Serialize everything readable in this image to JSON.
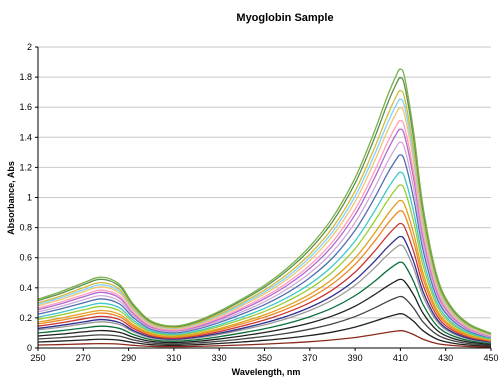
{
  "chart_data": {
    "type": "line",
    "title": "Myoglobin Sample",
    "xlabel": "Wavelength, nm",
    "ylabel": "Absorbance, Abs",
    "xlim": [
      250,
      450
    ],
    "ylim": [
      0,
      2
    ],
    "x_ticks": [
      "250",
      "270",
      "290",
      "310",
      "330",
      "350",
      "370",
      "390",
      "410",
      "430",
      "450"
    ],
    "y_ticks": [
      "0",
      "0.2",
      "0.4",
      "0.6",
      "0.8",
      "1",
      "1.2",
      "1.4",
      "1.6",
      "1.8",
      "2"
    ],
    "grid": true,
    "legend": "none",
    "x": [
      250,
      260,
      270,
      278,
      286,
      292,
      300,
      310,
      320,
      330,
      340,
      350,
      360,
      370,
      380,
      390,
      398,
      404,
      408,
      410,
      412,
      416,
      420,
      426,
      432,
      440,
      450
    ],
    "series": [
      {
        "color": "#8b2a1a",
        "values": [
          0.02,
          0.023,
          0.027,
          0.029,
          0.026,
          0.018,
          0.011,
          0.009,
          0.011,
          0.015,
          0.02,
          0.026,
          0.033,
          0.042,
          0.054,
          0.07,
          0.088,
          0.103,
          0.112,
          0.115,
          0.111,
          0.088,
          0.058,
          0.03,
          0.018,
          0.01,
          0.006
        ]
      },
      {
        "color": "#222222",
        "values": [
          0.04,
          0.046,
          0.053,
          0.058,
          0.052,
          0.036,
          0.022,
          0.018,
          0.022,
          0.03,
          0.04,
          0.051,
          0.065,
          0.083,
          0.106,
          0.139,
          0.175,
          0.205,
          0.222,
          0.228,
          0.22,
          0.175,
          0.115,
          0.06,
          0.035,
          0.02,
          0.012
        ]
      },
      {
        "color": "#444444",
        "values": [
          0.06,
          0.069,
          0.08,
          0.087,
          0.078,
          0.054,
          0.033,
          0.027,
          0.033,
          0.045,
          0.06,
          0.077,
          0.098,
          0.125,
          0.16,
          0.209,
          0.262,
          0.307,
          0.333,
          0.342,
          0.33,
          0.262,
          0.173,
          0.09,
          0.053,
          0.03,
          0.018
        ]
      },
      {
        "color": "#1f1f1f",
        "values": [
          0.08,
          0.092,
          0.107,
          0.116,
          0.104,
          0.072,
          0.044,
          0.036,
          0.044,
          0.06,
          0.08,
          0.103,
          0.131,
          0.166,
          0.213,
          0.278,
          0.349,
          0.409,
          0.445,
          0.456,
          0.44,
          0.349,
          0.231,
          0.12,
          0.07,
          0.04,
          0.024
        ]
      },
      {
        "color": "#0b6e3a",
        "values": [
          0.1,
          0.115,
          0.133,
          0.145,
          0.13,
          0.09,
          0.055,
          0.045,
          0.055,
          0.075,
          0.1,
          0.128,
          0.163,
          0.208,
          0.266,
          0.348,
          0.436,
          0.512,
          0.556,
          0.57,
          0.55,
          0.436,
          0.289,
          0.15,
          0.088,
          0.05,
          0.03
        ]
      },
      {
        "color": "#9a9a9a",
        "values": [
          0.12,
          0.138,
          0.16,
          0.174,
          0.156,
          0.108,
          0.066,
          0.054,
          0.066,
          0.09,
          0.12,
          0.154,
          0.196,
          0.249,
          0.319,
          0.417,
          0.524,
          0.614,
          0.667,
          0.684,
          0.66,
          0.524,
          0.346,
          0.18,
          0.105,
          0.06,
          0.036
        ]
      },
      {
        "color": "#2f2f8f",
        "values": [
          0.13,
          0.15,
          0.173,
          0.189,
          0.169,
          0.117,
          0.072,
          0.059,
          0.072,
          0.098,
          0.13,
          0.167,
          0.212,
          0.27,
          0.346,
          0.452,
          0.567,
          0.665,
          0.722,
          0.741,
          0.715,
          0.567,
          0.375,
          0.195,
          0.114,
          0.065,
          0.039
        ]
      },
      {
        "color": "#cc3333",
        "values": [
          0.145,
          0.167,
          0.193,
          0.21,
          0.189,
          0.131,
          0.08,
          0.065,
          0.08,
          0.109,
          0.145,
          0.186,
          0.237,
          0.301,
          0.386,
          0.504,
          0.633,
          0.742,
          0.806,
          0.827,
          0.798,
          0.633,
          0.419,
          0.218,
          0.127,
          0.073,
          0.044
        ]
      },
      {
        "color": "#ee8822",
        "values": [
          0.16,
          0.184,
          0.213,
          0.232,
          0.208,
          0.144,
          0.088,
          0.072,
          0.088,
          0.12,
          0.16,
          0.205,
          0.261,
          0.332,
          0.426,
          0.556,
          0.698,
          0.819,
          0.889,
          0.912,
          0.88,
          0.698,
          0.462,
          0.24,
          0.14,
          0.08,
          0.048
        ]
      },
      {
        "color": "#e0a020",
        "values": [
          0.172,
          0.198,
          0.229,
          0.249,
          0.224,
          0.155,
          0.095,
          0.077,
          0.095,
          0.129,
          0.172,
          0.22,
          0.281,
          0.357,
          0.458,
          0.598,
          0.751,
          0.88,
          0.956,
          0.98,
          0.946,
          0.751,
          0.497,
          0.258,
          0.151,
          0.086,
          0.052
        ]
      },
      {
        "color": "#9acd32",
        "values": [
          0.19,
          0.219,
          0.253,
          0.276,
          0.247,
          0.171,
          0.105,
          0.086,
          0.105,
          0.143,
          0.19,
          0.243,
          0.31,
          0.394,
          0.505,
          0.66,
          0.829,
          0.972,
          1.056,
          1.083,
          1.045,
          0.829,
          0.549,
          0.285,
          0.166,
          0.095,
          0.057
        ]
      },
      {
        "color": "#40c8c8",
        "values": [
          0.205,
          0.236,
          0.273,
          0.297,
          0.267,
          0.185,
          0.113,
          0.092,
          0.113,
          0.154,
          0.205,
          0.263,
          0.335,
          0.425,
          0.545,
          0.712,
          0.894,
          1.049,
          1.139,
          1.168,
          1.127,
          0.894,
          0.592,
          0.308,
          0.179,
          0.103,
          0.062
        ]
      },
      {
        "color": "#4f6fb0",
        "values": [
          0.225,
          0.259,
          0.3,
          0.326,
          0.293,
          0.203,
          0.124,
          0.101,
          0.124,
          0.169,
          0.225,
          0.288,
          0.367,
          0.467,
          0.598,
          0.782,
          0.981,
          1.151,
          1.25,
          1.283,
          1.237,
          0.981,
          0.65,
          0.338,
          0.197,
          0.113,
          0.068
        ]
      },
      {
        "color": "#d4a7d8",
        "values": [
          0.24,
          0.276,
          0.32,
          0.348,
          0.312,
          0.216,
          0.132,
          0.108,
          0.132,
          0.18,
          0.24,
          0.307,
          0.392,
          0.498,
          0.638,
          0.834,
          1.047,
          1.228,
          1.333,
          1.368,
          1.32,
          1.047,
          0.693,
          0.36,
          0.21,
          0.12,
          0.072
        ]
      },
      {
        "color": "#b06ad0",
        "values": [
          0.255,
          0.293,
          0.34,
          0.37,
          0.332,
          0.23,
          0.14,
          0.115,
          0.14,
          0.191,
          0.255,
          0.327,
          0.416,
          0.529,
          0.678,
          0.886,
          1.112,
          1.304,
          1.417,
          1.454,
          1.403,
          1.112,
          0.737,
          0.383,
          0.223,
          0.128,
          0.077
        ]
      },
      {
        "color": "#ff9ec0",
        "values": [
          0.265,
          0.305,
          0.353,
          0.384,
          0.345,
          0.239,
          0.146,
          0.119,
          0.146,
          0.199,
          0.265,
          0.34,
          0.433,
          0.55,
          0.705,
          0.921,
          1.156,
          1.356,
          1.472,
          1.511,
          1.458,
          1.156,
          0.765,
          0.398,
          0.232,
          0.133,
          0.08
        ]
      },
      {
        "color": "#f2c470",
        "values": [
          0.28,
          0.322,
          0.373,
          0.406,
          0.364,
          0.252,
          0.154,
          0.126,
          0.154,
          0.21,
          0.28,
          0.359,
          0.457,
          0.581,
          0.745,
          0.973,
          1.221,
          1.433,
          1.556,
          1.596,
          1.54,
          1.221,
          0.809,
          0.42,
          0.245,
          0.14,
          0.084
        ]
      },
      {
        "color": "#7fd3ff",
        "values": [
          0.29,
          0.334,
          0.386,
          0.42,
          0.377,
          0.261,
          0.16,
          0.131,
          0.16,
          0.218,
          0.29,
          0.372,
          0.473,
          0.602,
          0.771,
          1.008,
          1.265,
          1.484,
          1.611,
          1.653,
          1.595,
          1.265,
          0.838,
          0.435,
          0.254,
          0.145,
          0.087
        ]
      },
      {
        "color": "#d2b93a",
        "values": [
          0.3,
          0.345,
          0.4,
          0.435,
          0.39,
          0.27,
          0.165,
          0.135,
          0.165,
          0.225,
          0.3,
          0.385,
          0.49,
          0.623,
          0.798,
          1.043,
          1.309,
          1.535,
          1.667,
          1.71,
          1.65,
          1.309,
          0.867,
          0.45,
          0.263,
          0.15,
          0.09
        ]
      },
      {
        "color": "#5c8f4a",
        "values": [
          0.315,
          0.362,
          0.42,
          0.457,
          0.41,
          0.284,
          0.173,
          0.142,
          0.173,
          0.236,
          0.315,
          0.404,
          0.515,
          0.654,
          0.838,
          1.095,
          1.374,
          1.612,
          1.75,
          1.796,
          1.733,
          1.374,
          0.91,
          0.473,
          0.276,
          0.158,
          0.095
        ]
      },
      {
        "color": "#7ab04a",
        "values": [
          0.325,
          0.374,
          0.433,
          0.471,
          0.423,
          0.293,
          0.179,
          0.146,
          0.179,
          0.244,
          0.325,
          0.417,
          0.531,
          0.675,
          0.865,
          1.13,
          1.418,
          1.663,
          1.806,
          1.853,
          1.788,
          1.418,
          0.939,
          0.488,
          0.284,
          0.163,
          0.098
        ]
      }
    ]
  }
}
